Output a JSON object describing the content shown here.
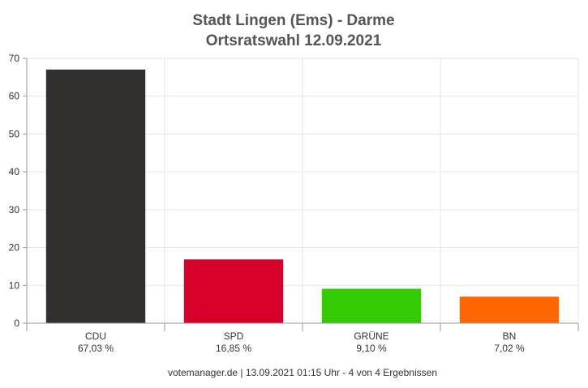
{
  "chart_data": {
    "type": "bar",
    "title": "Stadt Lingen (Ems) - Darme",
    "subtitle": "Ortsratswahl 12.09.2021",
    "categories": [
      "CDU",
      "SPD",
      "GRÜNE",
      "BN"
    ],
    "value_labels": [
      "67,03 %",
      "16,85 %",
      "9,10 %",
      "7,02 %"
    ],
    "values": [
      67.03,
      16.85,
      9.1,
      7.02
    ],
    "colors": [
      "#32302e",
      "#d6002a",
      "#33cc00",
      "#ff6600"
    ],
    "ylim": [
      0,
      70
    ],
    "yticks": [
      "0",
      "10",
      "20",
      "30",
      "40",
      "50",
      "60",
      "70"
    ],
    "grid": true,
    "xlabel": "",
    "ylabel": ""
  },
  "footer": "votemanager.de | 13.09.2021 01:15 Uhr - 4 von 4 Ergebnissen"
}
